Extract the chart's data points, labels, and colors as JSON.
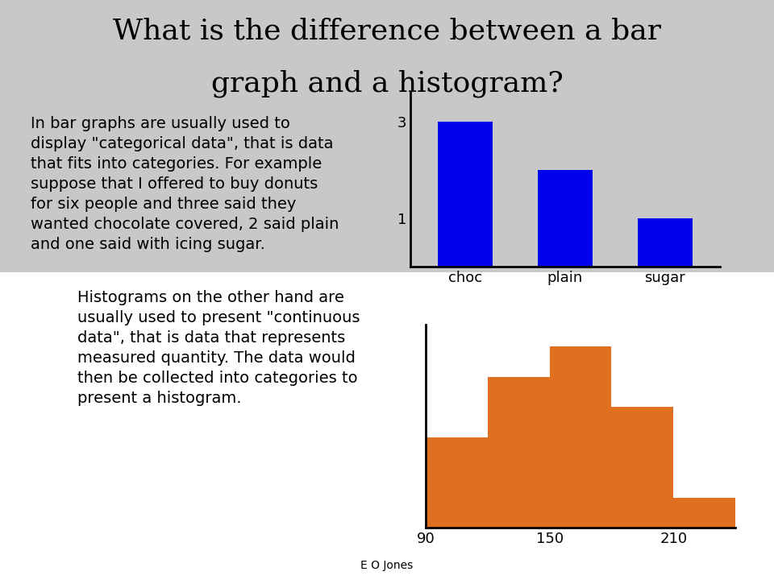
{
  "title_line1": "What is the difference between a bar",
  "title_line2": "graph and a histogram?",
  "title_fontsize": 26,
  "title_font": "serif",
  "bg_top_color": "#c8c8c8",
  "bg_bottom_color": "#ffffff",
  "footer_text": "E O Jones",
  "footer_fontsize": 10,
  "bar_categories": [
    "choc",
    "plain",
    "sugar"
  ],
  "bar_values": [
    3,
    2,
    1
  ],
  "bar_color": "#0000ee",
  "bar_yticks": [
    1,
    3
  ],
  "bar_ylim": [
    0,
    3.6
  ],
  "bar_text_line1": "In bar graphs are usually used to",
  "bar_text_line2": "display \"categorical data\", that is data",
  "bar_text_line3": "that fits into categories. For example",
  "bar_text_line4": "suppose that I offered to buy donuts",
  "bar_text_line5": "for six people and three said they",
  "bar_text_line6": "wanted chocolate covered, 2 said plain",
  "bar_text_line7": "and one said with icing sugar.",
  "hist_bins": [
    90,
    120,
    150,
    180,
    210,
    240
  ],
  "hist_values": [
    3,
    5,
    6,
    4,
    1
  ],
  "hist_color": "#e07020",
  "hist_xticks": [
    90,
    150,
    210
  ],
  "hist_text_line1": "Histograms on the other hand are",
  "hist_text_line2": "usually used to present \"continuous",
  "hist_text_line3": "data\", that is data that represents",
  "hist_text_line4": "measured quantity. The data would",
  "hist_text_line5": "then be collected into categories to",
  "hist_text_line6": "present a histogram.",
  "text_fontsize": 14,
  "text_font": "sans-serif"
}
